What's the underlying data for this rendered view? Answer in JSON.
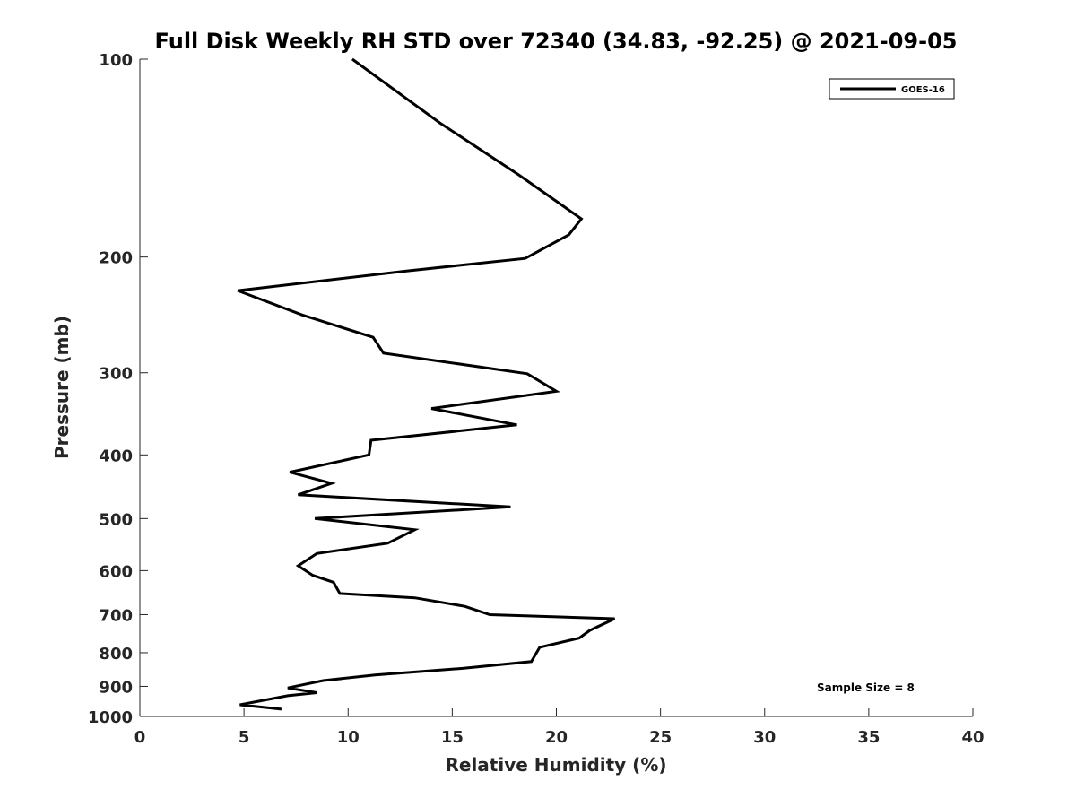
{
  "chart_data": {
    "type": "line",
    "title": "Full Disk Weekly RH STD over 72340 (34.83, -92.25) @ 2021-09-05",
    "xlabel": "Relative Humidity (%)",
    "ylabel": "Pressure (mb)",
    "xlim": [
      0,
      40
    ],
    "ylim": [
      100,
      1000
    ],
    "y_scale": "log",
    "y_reversed": true,
    "x_ticks": [
      0,
      5,
      10,
      15,
      20,
      25,
      30,
      35,
      40
    ],
    "y_ticks": [
      100,
      200,
      300,
      400,
      500,
      600,
      700,
      800,
      900,
      1000
    ],
    "grid": false,
    "legend_position": "top-right",
    "series": [
      {
        "name": "GOES-16",
        "color": "#000000",
        "points": [
          [
            10.2,
            100
          ],
          [
            14.4,
            125
          ],
          [
            18.2,
            150
          ],
          [
            21.2,
            175
          ],
          [
            20.6,
            185
          ],
          [
            18.5,
            201
          ],
          [
            12.8,
            210
          ],
          [
            4.7,
            225
          ],
          [
            7.8,
            245
          ],
          [
            11.2,
            265
          ],
          [
            11.7,
            280
          ],
          [
            18.6,
            301
          ],
          [
            20.0,
            320
          ],
          [
            14.0,
            340
          ],
          [
            18.1,
            360
          ],
          [
            11.1,
            380
          ],
          [
            11.0,
            400
          ],
          [
            7.2,
            425
          ],
          [
            9.2,
            442
          ],
          [
            7.6,
            460
          ],
          [
            17.8,
            480
          ],
          [
            8.4,
            500
          ],
          [
            13.2,
            520
          ],
          [
            11.9,
            545
          ],
          [
            8.5,
            565
          ],
          [
            7.6,
            590
          ],
          [
            8.3,
            610
          ],
          [
            9.3,
            625
          ],
          [
            9.6,
            650
          ],
          [
            13.2,
            660
          ],
          [
            15.6,
            680
          ],
          [
            16.8,
            700
          ],
          [
            22.8,
            710
          ],
          [
            21.6,
            740
          ],
          [
            21.1,
            760
          ],
          [
            19.2,
            785
          ],
          [
            18.8,
            825
          ],
          [
            15.5,
            845
          ],
          [
            11.3,
            865
          ],
          [
            8.8,
            882
          ],
          [
            7.1,
            905
          ],
          [
            8.5,
            920
          ],
          [
            7.1,
            930
          ],
          [
            4.8,
            960
          ],
          [
            6.8,
            975
          ]
        ]
      }
    ],
    "annotations": [
      "Sample Size = 8"
    ]
  },
  "colors": {
    "line": "#000000",
    "axis": "#262626",
    "background": "#ffffff"
  }
}
